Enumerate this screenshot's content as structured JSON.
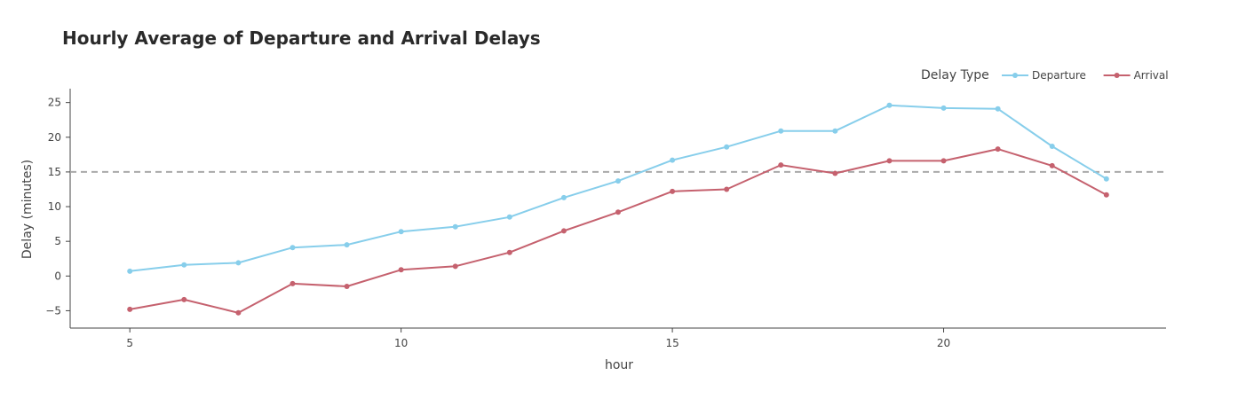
{
  "chart_data": {
    "type": "line",
    "title": "Hourly Average of Departure and Arrival Delays",
    "xlabel": "hour",
    "ylabel": "Delay (minutes)",
    "xlim": [
      3.9,
      24.1
    ],
    "ylim": [
      -7.5,
      27
    ],
    "x_ticks": [
      5,
      10,
      15,
      20
    ],
    "y_ticks": [
      -5,
      0,
      5,
      10,
      15,
      20,
      25
    ],
    "x": [
      5,
      6,
      7,
      8,
      9,
      10,
      11,
      12,
      13,
      14,
      15,
      16,
      17,
      18,
      19,
      20,
      21,
      22,
      23
    ],
    "legend": {
      "title": "Delay Type",
      "placement": "top-right",
      "orientation": "horizontal"
    },
    "series": [
      {
        "name": "Departure",
        "color": "#87CEEB",
        "values": [
          0.7,
          1.6,
          1.9,
          4.1,
          4.5,
          6.4,
          7.1,
          8.5,
          11.3,
          13.7,
          16.7,
          18.6,
          20.9,
          20.9,
          24.6,
          24.2,
          24.1,
          18.7,
          14.0
        ]
      },
      {
        "name": "Arrival",
        "color": "#C5616E",
        "values": [
          -4.8,
          -3.4,
          -5.3,
          -1.1,
          -1.5,
          0.9,
          1.4,
          3.4,
          6.5,
          9.2,
          12.2,
          12.5,
          16.0,
          14.8,
          16.6,
          16.6,
          18.3,
          15.9,
          11.7
        ]
      }
    ],
    "reference_line": {
      "y": 15,
      "style": "dashed",
      "color": "#a9a9a9"
    },
    "grid": false
  }
}
